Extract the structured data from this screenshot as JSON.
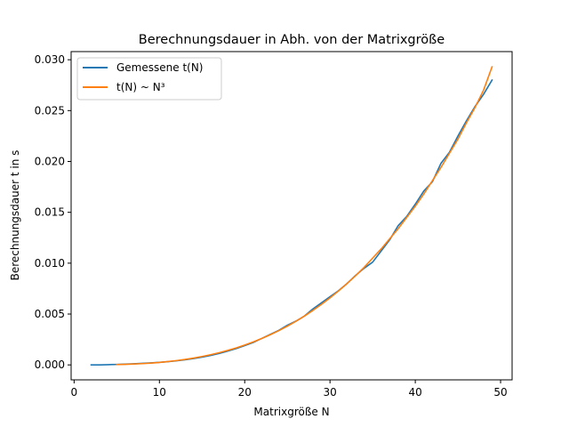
{
  "chart_data": {
    "type": "line",
    "title": "Berechnungsdauer in Abh. von der Matrixgröße",
    "xlabel": "Matrixgröße N",
    "ylabel": "Berechnungsdauer t in s",
    "xlim": [
      -0.35,
      51.35
    ],
    "ylim": [
      -0.00147,
      0.0308
    ],
    "x_ticks": [
      0,
      10,
      20,
      30,
      40,
      50
    ],
    "x_tick_labels": [
      "0",
      "10",
      "20",
      "30",
      "40",
      "50"
    ],
    "y_ticks": [
      0,
      0.005,
      0.01,
      0.015,
      0.02,
      0.025,
      0.03
    ],
    "y_tick_labels": [
      "0.000",
      "0.005",
      "0.010",
      "0.015",
      "0.020",
      "0.025",
      "0.030"
    ],
    "grid": false,
    "legend_position": "top-left",
    "series": [
      {
        "name": "Gemessene t(N)",
        "color": "#1f77b4",
        "x": [
          2,
          3,
          4,
          5,
          6,
          7,
          8,
          9,
          10,
          11,
          12,
          13,
          14,
          15,
          16,
          17,
          18,
          19,
          20,
          21,
          22,
          23,
          24,
          25,
          26,
          27,
          28,
          29,
          30,
          31,
          32,
          33,
          34,
          35,
          36,
          37,
          38,
          39,
          40,
          41,
          42,
          43,
          44,
          45,
          46,
          47,
          48,
          49
        ],
        "y": [
          0.0,
          0.0,
          2e-05,
          5e-05,
          8e-05,
          0.00011,
          0.00015,
          0.0002,
          0.00025,
          0.00032,
          0.0004,
          0.0005,
          0.00062,
          0.00076,
          0.00093,
          0.00112,
          0.00135,
          0.0016,
          0.0019,
          0.0022,
          0.0026,
          0.003,
          0.0034,
          0.0039,
          0.0043,
          0.0048,
          0.0055,
          0.0061,
          0.0067,
          0.0073,
          0.008,
          0.0088,
          0.0095,
          0.0101,
          0.0112,
          0.0123,
          0.0137,
          0.0146,
          0.0158,
          0.0171,
          0.018,
          0.0198,
          0.0209,
          0.0225,
          0.024,
          0.0254,
          0.0266,
          0.028
        ]
      },
      {
        "name": "t(N) ~ N³",
        "color": "#ff7f0e",
        "x": [
          5,
          6,
          7,
          8,
          9,
          10,
          11,
          12,
          13,
          14,
          15,
          16,
          17,
          18,
          19,
          20,
          21,
          22,
          23,
          24,
          25,
          26,
          27,
          28,
          29,
          30,
          31,
          32,
          33,
          34,
          35,
          36,
          37,
          38,
          39,
          40,
          41,
          42,
          43,
          44,
          45,
          46,
          47,
          48,
          49
        ],
        "y": [
          3.05e-05,
          5.27e-05,
          8.37e-05,
          0.000125,
          0.000178,
          0.000244,
          0.000325,
          0.000422,
          0.000536,
          0.00067,
          0.000824,
          0.001,
          0.0012,
          0.00142,
          0.00167,
          0.00195,
          0.00226,
          0.0026,
          0.00297,
          0.00337,
          0.00381,
          0.00429,
          0.0048,
          0.00536,
          0.00595,
          0.00659,
          0.00727,
          0.008,
          0.00877,
          0.00959,
          0.0105,
          0.0114,
          0.0124,
          0.0134,
          0.0145,
          0.0156,
          0.0168,
          0.0181,
          0.0194,
          0.0208,
          0.0222,
          0.0238,
          0.0253,
          0.027,
          0.0293
        ]
      }
    ]
  }
}
